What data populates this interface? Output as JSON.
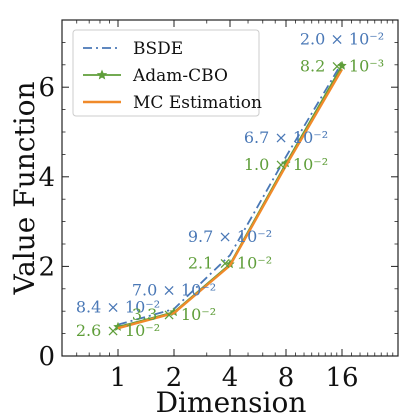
{
  "chart_data": {
    "type": "line",
    "xlabel": "Dimension",
    "ylabel": "Value Function",
    "x": [
      1,
      2,
      4,
      8,
      16
    ],
    "x_tick_labels": [
      "1",
      "2",
      "4",
      "8",
      "16"
    ],
    "x_scale": "log2",
    "xlim": [
      0.5,
      32
    ],
    "ylim": [
      0,
      7.5
    ],
    "y_ticks": [
      0,
      2,
      4,
      6
    ],
    "y_tick_labels": [
      "0",
      "2",
      "4",
      "6"
    ],
    "grid": false,
    "legend_position": "top-left",
    "series": [
      {
        "name": "BSDE",
        "values": [
          0.7,
          1.05,
          2.25,
          4.45,
          6.55
        ],
        "color": "#4a78b6",
        "style": "dashdot",
        "marker": "none"
      },
      {
        "name": "Adam-CBO",
        "values": [
          0.65,
          0.98,
          2.05,
          4.3,
          6.48
        ],
        "color": "#5f9e3a",
        "style": "solid",
        "marker": "star"
      },
      {
        "name": "MC Estimation",
        "values": [
          0.62,
          0.96,
          2.02,
          4.25,
          6.4
        ],
        "color": "#f08a2a",
        "style": "solid",
        "marker": "none"
      }
    ],
    "annotations": [
      {
        "text": "8.4 × 10⁻²",
        "series": "BSDE",
        "x": 1,
        "y": 0.97
      },
      {
        "text": "7.0 × 10⁻²",
        "series": "BSDE",
        "x": 2,
        "y": 1.35
      },
      {
        "text": "9.7 × 10⁻²",
        "series": "BSDE",
        "x": 4,
        "y": 2.55
      },
      {
        "text": "6.7 × 10⁻²",
        "series": "BSDE",
        "x": 8,
        "y": 4.75
      },
      {
        "text": "2.0 × 10⁻²",
        "series": "BSDE",
        "x": 16,
        "y": 6.95
      },
      {
        "text": "2.6 × 10⁻²",
        "series": "Adam-CBO",
        "x": 1,
        "y": 0.45
      },
      {
        "text": "3.3 × 10⁻²",
        "series": "Adam-CBO",
        "x": 2,
        "y": 0.8
      },
      {
        "text": "2.1 × 10⁻²",
        "series": "Adam-CBO",
        "x": 4,
        "y": 1.95
      },
      {
        "text": "1.0 × 10⁻²",
        "series": "Adam-CBO",
        "x": 8,
        "y": 4.15
      },
      {
        "text": "8.2 × 10⁻³",
        "series": "Adam-CBO",
        "x": 16,
        "y": 6.35
      }
    ]
  }
}
